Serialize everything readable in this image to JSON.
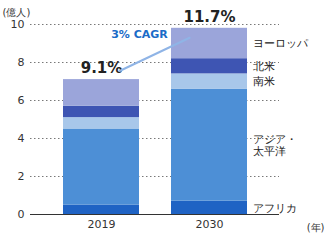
{
  "chart_data": {
    "type": "bar",
    "stacked": true,
    "categories": [
      "2019",
      "2030"
    ],
    "series": [
      {
        "name": "アフリカ",
        "color": "#1f63c4",
        "values": [
          0.5,
          0.7
        ]
      },
      {
        "name": "アジア・太平洋",
        "color": "#4d8fd6",
        "values": [
          4.0,
          5.9
        ]
      },
      {
        "name": "南米",
        "color": "#a8c7ea",
        "values": [
          0.6,
          0.8
        ]
      },
      {
        "name": "北米",
        "color": "#3e55b3",
        "values": [
          0.6,
          0.8
        ]
      },
      {
        "name": "ヨーロッパ",
        "color": "#9ba5da",
        "values": [
          1.4,
          1.6
        ]
      }
    ],
    "ylabel": "(億人)",
    "xlabel": "(年)",
    "ylim": [
      0,
      10
    ],
    "yticks": [
      0,
      2,
      4,
      6,
      8,
      10
    ],
    "grid": true,
    "legend": "right",
    "annotations": [
      {
        "category": "2019",
        "text": "9.1%"
      },
      {
        "category": "2030",
        "text": "11.7%"
      },
      {
        "text": "3% CAGR"
      }
    ]
  }
}
